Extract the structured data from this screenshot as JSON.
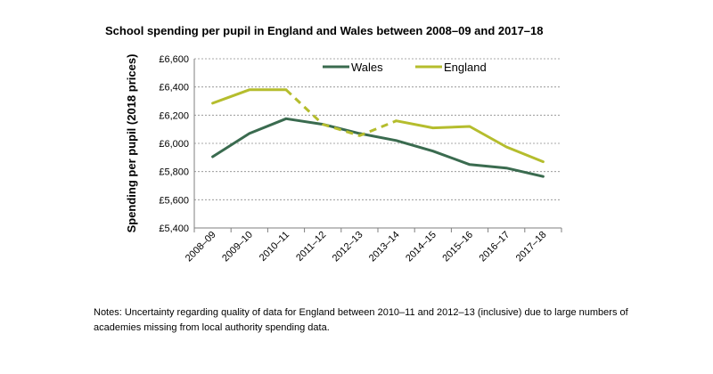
{
  "chart_data": {
    "type": "line",
    "title": "School spending per pupil in England and Wales between 2008–09 and 2017–18",
    "xlabel": "",
    "ylabel": "Spending per pupil (2018 prices)",
    "categories": [
      "2008–09",
      "2009–10",
      "2010–11",
      "2011–12",
      "2012–13",
      "2013–14",
      "2014–15",
      "2015–16",
      "2016–17",
      "2017–18"
    ],
    "ylim": [
      5400,
      6600
    ],
    "yticks": [
      5400,
      5600,
      5800,
      6000,
      6200,
      6400,
      6600
    ],
    "ytick_labels": [
      "£5,400",
      "£5,600",
      "£5,800",
      "£6,000",
      "£6,200",
      "£6,400",
      "£6,600"
    ],
    "grid": "horizontal dashed",
    "legend": "top, inside plot",
    "series": [
      {
        "name": "Wales",
        "color": "#3a6b4f",
        "values": [
          5905,
          6070,
          6175,
          6135,
          6070,
          6020,
          5945,
          5850,
          5825,
          5765
        ]
      },
      {
        "name": "England",
        "color": "#b5bd2d",
        "values": [
          6285,
          6380,
          6380,
          6135,
          6055,
          6160,
          6110,
          6120,
          5975,
          5870
        ],
        "dashed_segment": "2010–11 to 2013–14"
      }
    ]
  },
  "notes": "Notes: Uncertainty regarding quality of data for England between 2010–11 and 2012–13 (inclusive) due to large numbers of academies missing from local authority spending data."
}
